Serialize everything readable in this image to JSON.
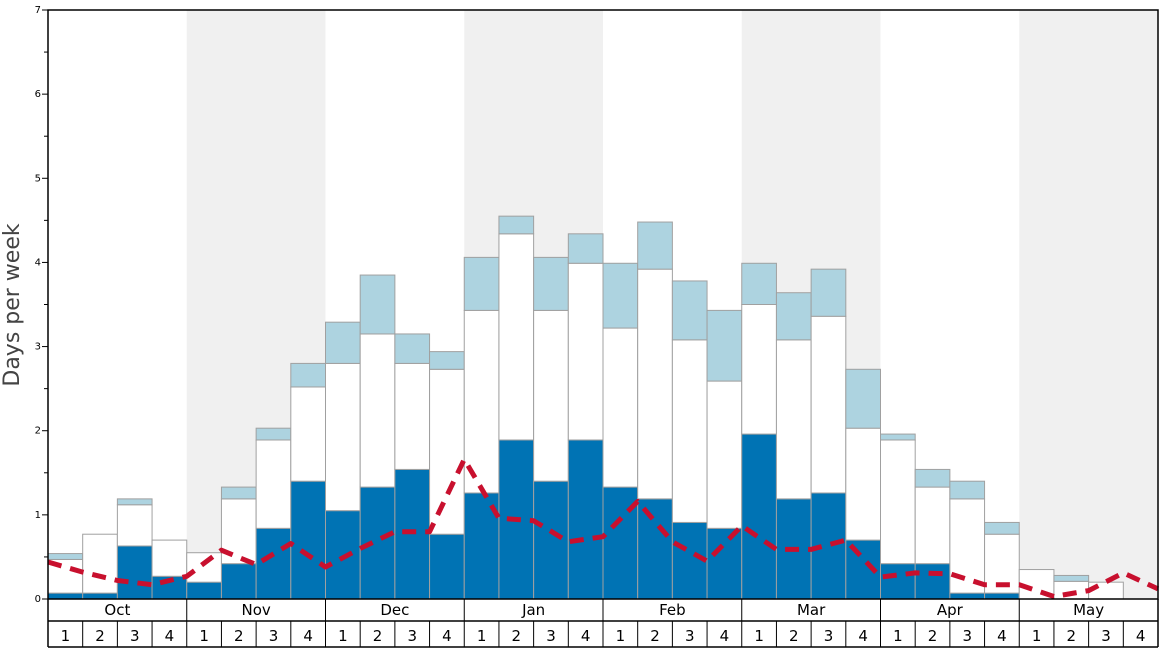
{
  "chart_data": {
    "type": "bar",
    "ylabel": "Days per week",
    "ylim": [
      0,
      7
    ],
    "yticks": [
      0,
      1,
      2,
      3,
      4,
      5,
      6,
      7
    ],
    "months": [
      "Oct",
      "Nov",
      "Dec",
      "Jan",
      "Feb",
      "Mar",
      "Apr",
      "May"
    ],
    "week_labels": [
      "1",
      "2",
      "3",
      "4"
    ],
    "shaded_months": [
      "Nov",
      "Jan",
      "Mar",
      "May"
    ],
    "colors": {
      "dark": "#0073b4",
      "white": "#ffffff",
      "light": "#add3e0",
      "line": "#c8102e",
      "shade": "#f0f0f0",
      "bar_stroke": "#a0a0a0"
    },
    "series": [
      {
        "values": [
          0.07,
          0.07,
          0.63,
          0.27,
          0.2,
          0.42,
          0.84,
          1.4,
          1.05,
          1.33,
          1.54,
          0.77,
          1.26,
          1.89,
          1.4,
          1.89,
          1.33,
          1.19,
          0.91,
          0.84,
          1.96,
          1.19,
          1.26,
          0.7,
          0.42,
          0.42,
          0.07,
          0.07,
          0.0,
          0.0,
          0.0,
          0.0
        ]
      },
      {
        "values": [
          0.4,
          0.7,
          0.49,
          0.43,
          0.35,
          0.77,
          1.05,
          1.12,
          1.75,
          1.82,
          1.26,
          1.96,
          2.17,
          2.45,
          2.03,
          2.1,
          1.89,
          2.73,
          2.17,
          1.75,
          1.54,
          1.89,
          2.1,
          1.33,
          1.47,
          0.91,
          1.12,
          0.7,
          0.35,
          0.21,
          0.2,
          0.0
        ]
      },
      {
        "values": [
          0.07,
          0.0,
          0.07,
          0.0,
          0.0,
          0.14,
          0.14,
          0.28,
          0.49,
          0.7,
          0.35,
          0.21,
          0.63,
          0.21,
          0.63,
          0.35,
          0.77,
          0.56,
          0.7,
          0.84,
          0.49,
          0.56,
          0.56,
          0.7,
          0.07,
          0.21,
          0.21,
          0.14,
          0.0,
          0.07,
          0.0,
          0.0
        ]
      },
      {
        "type": "line",
        "values": [
          0.44,
          0.32,
          0.22,
          0.17,
          0.27,
          0.58,
          0.41,
          0.66,
          0.38,
          0.6,
          0.8,
          0.8,
          1.66,
          0.96,
          0.93,
          0.68,
          0.74,
          1.16,
          0.68,
          0.45,
          0.87,
          0.59,
          0.59,
          0.7,
          0.26,
          0.31,
          0.3,
          0.17,
          0.17,
          0.03,
          0.1,
          0.31,
          0.12
        ]
      }
    ]
  }
}
